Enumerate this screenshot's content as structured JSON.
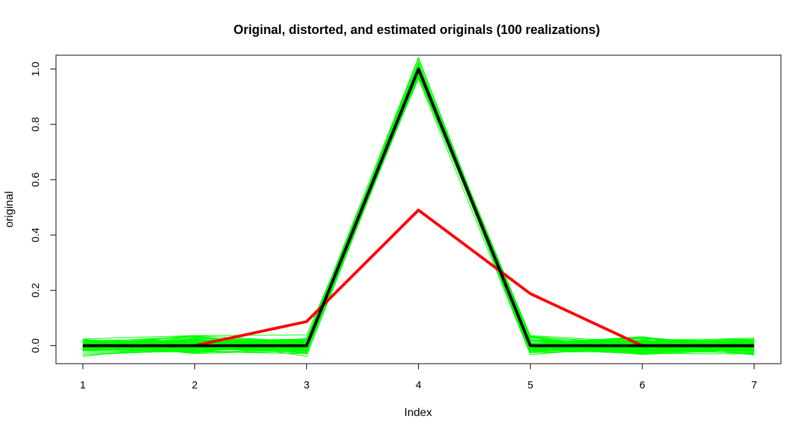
{
  "chart_data": {
    "type": "line",
    "title": "Original, distorted, and estimated originals (100 realizations)",
    "xlabel": "Index",
    "ylabel": "original",
    "x": [
      1,
      2,
      3,
      4,
      5,
      6,
      7
    ],
    "xlim": [
      0.76,
      7.24
    ],
    "ylim": [
      -0.065,
      1.05
    ],
    "xticks": [
      "1",
      "2",
      "3",
      "4",
      "5",
      "6",
      "7"
    ],
    "yticks": [
      "0.0",
      "0.2",
      "0.4",
      "0.6",
      "0.8",
      "1.0"
    ],
    "grid": false,
    "series": [
      {
        "role": "estimates",
        "color": "#00ff00",
        "realizations": 100,
        "values": [
          0.0,
          0.0,
          0.0,
          1.0,
          0.0,
          0.0,
          0.0
        ],
        "spread": 0.03
      },
      {
        "role": "distorted",
        "color": "#ff0000",
        "values": [
          0.0,
          0.0,
          0.087,
          0.49,
          0.188,
          0.0,
          0.0
        ]
      },
      {
        "role": "original",
        "color": "#000000",
        "values": [
          0.0,
          0.0,
          0.0,
          1.0,
          0.0,
          0.0,
          0.0
        ]
      }
    ]
  }
}
